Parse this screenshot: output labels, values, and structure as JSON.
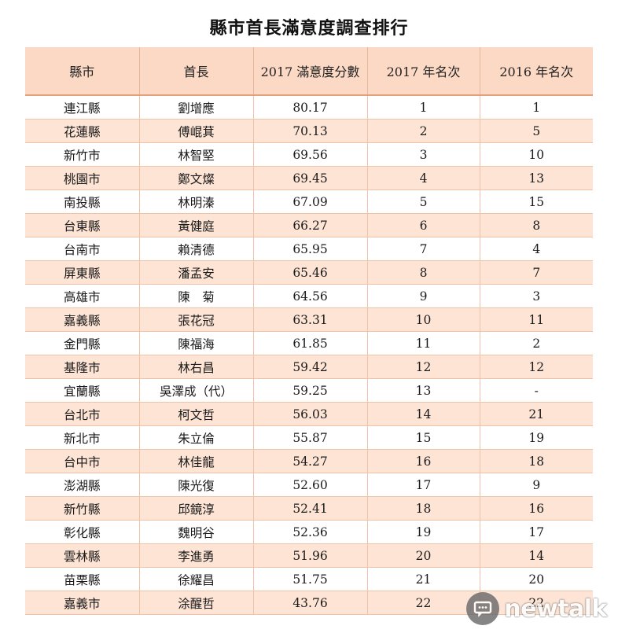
{
  "chart_data": {
    "type": "table",
    "title": "縣市首長滿意度調查排行",
    "columns": [
      "縣市",
      "首長",
      "2017 滿意度分數",
      "2017 年名次",
      "2016 年名次"
    ],
    "rows": [
      [
        "連江縣",
        "劉增應",
        "80.17",
        "1",
        "1"
      ],
      [
        "花蓮縣",
        "傅崐萁",
        "70.13",
        "2",
        "5"
      ],
      [
        "新竹市",
        "林智堅",
        "69.56",
        "3",
        "10"
      ],
      [
        "桃園市",
        "鄭文燦",
        "69.45",
        "4",
        "13"
      ],
      [
        "南投縣",
        "林明溱",
        "67.09",
        "5",
        "15"
      ],
      [
        "台東縣",
        "黃健庭",
        "66.27",
        "6",
        "8"
      ],
      [
        "台南市",
        "賴清德",
        "65.95",
        "7",
        "4"
      ],
      [
        "屏東縣",
        "潘孟安",
        "65.46",
        "8",
        "7"
      ],
      [
        "高雄市",
        "陳　菊",
        "64.56",
        "9",
        "3"
      ],
      [
        "嘉義縣",
        "張花冠",
        "63.31",
        "10",
        "11"
      ],
      [
        "金門縣",
        "陳福海",
        "61.85",
        "11",
        "2"
      ],
      [
        "基隆市",
        "林右昌",
        "59.42",
        "12",
        "12"
      ],
      [
        "宜蘭縣",
        "吳澤成（代）",
        "59.25",
        "13",
        "-"
      ],
      [
        "台北市",
        "柯文哲",
        "56.03",
        "14",
        "21"
      ],
      [
        "新北市",
        "朱立倫",
        "55.87",
        "15",
        "19"
      ],
      [
        "台中市",
        "林佳龍",
        "54.27",
        "16",
        "18"
      ],
      [
        "澎湖縣",
        "陳光復",
        "52.60",
        "17",
        "9"
      ],
      [
        "新竹縣",
        "邱鏡淳",
        "52.41",
        "18",
        "16"
      ],
      [
        "彰化縣",
        "魏明谷",
        "52.36",
        "19",
        "17"
      ],
      [
        "雲林縣",
        "李進勇",
        "51.96",
        "20",
        "14"
      ],
      [
        "苗栗縣",
        "徐耀昌",
        "51.75",
        "21",
        "20"
      ],
      [
        "嘉義市",
        "涂醒哲",
        "43.76",
        "22",
        "22"
      ]
    ]
  },
  "watermark": {
    "text": "newtalk",
    "icon": "newtalk-logo-icon"
  },
  "colors": {
    "header_bg": "#fcd9c4",
    "stripe_bg": "#fde4d5",
    "border": "#f0c3a9"
  }
}
